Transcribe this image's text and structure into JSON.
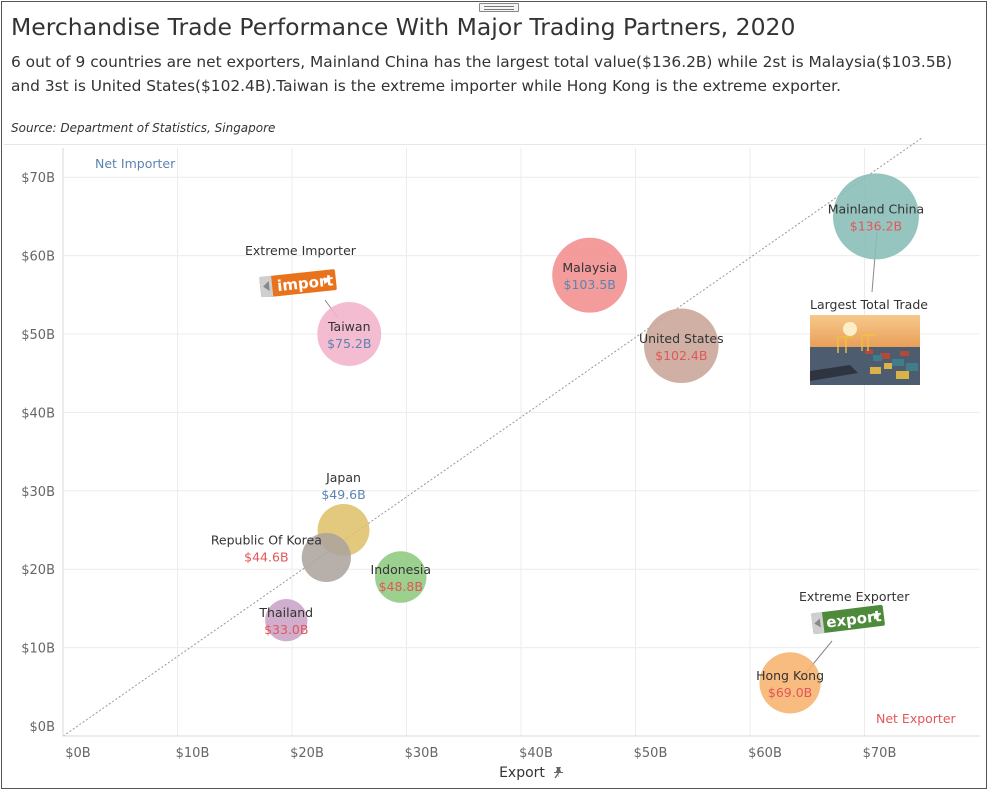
{
  "title": "Merchandise Trade Performance With Major Trading Partners, 2020",
  "subtitle": "6 out of  9 countries are net exporters, Mainland China has the largest total value($136.2B) while 2st is Malaysia($103.5B) and 3st is United States($102.4B).Taiwan is the extreme importer while Hong Kong is the extreme exporter.",
  "source": "Source: Department of Statistics, Singapore",
  "quadrant_labels": {
    "net_importer": "Net Importer",
    "net_exporter": "Net Exporter"
  },
  "annotations": {
    "extreme_importer": "Extreme Importer",
    "extreme_exporter": "Extreme Exporter",
    "largest_total_trade": "Largest Total Trade",
    "import_badge_text": "import",
    "export_badge_text": "export"
  },
  "colors": {
    "grid": "#ececec",
    "diagonal": "#999999",
    "axis_text": "#666666",
    "value_blue": "#5b84b1",
    "value_red": "#e15759",
    "net_importer": "#5b84b1",
    "net_exporter": "#e15759",
    "import_badge": "#e8731c",
    "export_badge": "#4d8a3a"
  },
  "chart_data": {
    "type": "scatter",
    "title": "Merchandise Trade Performance With Major Trading Partners, 2020",
    "xlabel": "Export",
    "ylabel": "",
    "xlim": [
      -1,
      80
    ],
    "ylim": [
      -1,
      75
    ],
    "x_ticks": [
      "$0B",
      "$10B",
      "$20B",
      "$30B",
      "$40B",
      "$50B",
      "$60B",
      "$70B"
    ],
    "y_ticks": [
      "$0B",
      "$10B",
      "$20B",
      "$30B",
      "$40B",
      "$50B",
      "$60B",
      "$70B"
    ],
    "grid": true,
    "size_encoding": "total trade value",
    "points": [
      {
        "name": "Mainland China",
        "value_label": "$136.2B",
        "export": 71,
        "import": 65,
        "total": 136.2,
        "color": "#87bdb6",
        "value_color": "#e15759",
        "label_pos": "inside"
      },
      {
        "name": "Malaysia",
        "value_label": "$103.5B",
        "export": 46,
        "import": 57.5,
        "total": 103.5,
        "color": "#f28e8e",
        "value_color": "#5b84b1",
        "label_pos": "inside"
      },
      {
        "name": "United States",
        "value_label": "$102.4B",
        "export": 54,
        "import": 48.5,
        "total": 102.4,
        "color": "#c9a597",
        "value_color": "#e15759",
        "label_pos": "inside"
      },
      {
        "name": "Taiwan",
        "value_label": "$75.2B",
        "export": 25,
        "import": 50,
        "total": 75.2,
        "color": "#f2b3cb",
        "value_color": "#5b84b1",
        "label_pos": "inside"
      },
      {
        "name": "Japan",
        "value_label": "$49.6B",
        "export": 24.5,
        "import": 25,
        "total": 49.6,
        "color": "#dfc26b",
        "value_color": "#5b84b1",
        "label_pos": "above"
      },
      {
        "name": "Republic Of Korea",
        "value_label": "$44.6B",
        "export": 23,
        "import": 21.5,
        "total": 44.6,
        "color": "#ada49d",
        "value_color": "#e15759",
        "label_pos": "left"
      },
      {
        "name": "Indonesia",
        "value_label": "$48.8B",
        "export": 29.5,
        "import": 19,
        "total": 48.8,
        "color": "#8ec97f",
        "value_color": "#e15759",
        "label_pos": "inside"
      },
      {
        "name": "Thailand",
        "value_label": "$33.0B",
        "export": 19.5,
        "import": 13.5,
        "total": 33.0,
        "color": "#cba3c6",
        "value_color": "#e15759",
        "label_pos": "inside"
      },
      {
        "name": "Hong Kong",
        "value_label": "$69.0B",
        "export": 63.5,
        "import": 5.5,
        "total": 69.0,
        "color": "#f7b26e",
        "value_color": "#e15759",
        "label_pos": "inside"
      }
    ]
  }
}
